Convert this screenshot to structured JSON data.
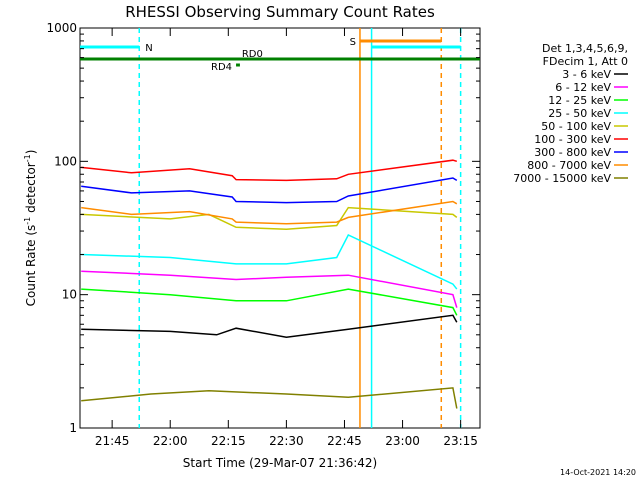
{
  "chart_data": {
    "type": "line",
    "title": "RHESSI Observing Summary Count Rates",
    "xlabel": "Start Time (29-Mar-07 21:36:42)",
    "ylabel_main": "Count Rate (s",
    "ylabel_sup1": "-1",
    "ylabel_mid": " detector",
    "ylabel_sup2": "-1",
    "ylabel_end": ")",
    "y_scale": "log",
    "ylim": [
      1,
      1000
    ],
    "xlim": [
      "21:36:42",
      "23:20:00"
    ],
    "x_ticks": [
      "21:45",
      "22:00",
      "22:15",
      "22:30",
      "22:45",
      "23:00",
      "23:15"
    ],
    "y_ticks": [
      "1",
      "10",
      "100",
      "1000"
    ],
    "legend_header": [
      "Det 1,3,4,5,6,9,",
      "FDecim 1, Att 0"
    ],
    "legend_position": "right",
    "series": [
      {
        "name": "3 - 6 keV",
        "color": "#000000",
        "points": [
          [
            "21:37",
            5.5
          ],
          [
            "22:00",
            5.3
          ],
          [
            "22:12",
            5.0
          ],
          [
            "22:17",
            5.6
          ],
          [
            "22:30",
            4.8
          ],
          [
            "22:46",
            5.5
          ],
          [
            "23:13",
            7.0
          ],
          [
            "23:14",
            6.2
          ]
        ]
      },
      {
        "name": "6 - 12 keV",
        "color": "#ff00ff",
        "points": [
          [
            "21:37",
            15
          ],
          [
            "22:00",
            14
          ],
          [
            "22:17",
            13
          ],
          [
            "22:30",
            13.5
          ],
          [
            "22:46",
            14
          ],
          [
            "23:13",
            10
          ],
          [
            "23:14",
            8
          ]
        ]
      },
      {
        "name": "12 - 25 keV",
        "color": "#00ff00",
        "points": [
          [
            "21:37",
            11
          ],
          [
            "22:00",
            10
          ],
          [
            "22:17",
            9
          ],
          [
            "22:30",
            9
          ],
          [
            "22:46",
            11
          ],
          [
            "23:13",
            8
          ],
          [
            "23:14",
            7
          ]
        ]
      },
      {
        "name": "25 - 50 keV",
        "color": "#00ffff",
        "points": [
          [
            "21:37",
            20
          ],
          [
            "22:00",
            19
          ],
          [
            "22:17",
            17
          ],
          [
            "22:30",
            17
          ],
          [
            "22:43",
            19
          ],
          [
            "22:46",
            28
          ],
          [
            "23:13",
            12
          ],
          [
            "23:14",
            11
          ]
        ]
      },
      {
        "name": "50 - 100 keV",
        "color": "#c8c800",
        "points": [
          [
            "21:37",
            40
          ],
          [
            "22:00",
            37
          ],
          [
            "22:10",
            40
          ],
          [
            "22:17",
            32
          ],
          [
            "22:30",
            31
          ],
          [
            "22:43",
            33
          ],
          [
            "22:46",
            45
          ],
          [
            "23:13",
            40
          ],
          [
            "23:14",
            38
          ]
        ]
      },
      {
        "name": "100 - 300 keV",
        "color": "#ff0000",
        "points": [
          [
            "21:37",
            90
          ],
          [
            "21:50",
            82
          ],
          [
            "22:05",
            88
          ],
          [
            "22:16",
            78
          ],
          [
            "22:17",
            73
          ],
          [
            "22:30",
            72
          ],
          [
            "22:43",
            74
          ],
          [
            "22:46",
            80
          ],
          [
            "23:13",
            102
          ],
          [
            "23:14",
            100
          ]
        ]
      },
      {
        "name": "300 - 800 keV",
        "color": "#0000ff",
        "points": [
          [
            "21:37",
            65
          ],
          [
            "21:50",
            58
          ],
          [
            "22:05",
            60
          ],
          [
            "22:16",
            54
          ],
          [
            "22:17",
            50
          ],
          [
            "22:30",
            49
          ],
          [
            "22:43",
            50
          ],
          [
            "22:46",
            55
          ],
          [
            "23:13",
            75
          ],
          [
            "23:14",
            72
          ]
        ]
      },
      {
        "name": "800 - 7000 keV",
        "color": "#ff8c00",
        "points": [
          [
            "21:37",
            45
          ],
          [
            "21:50",
            40
          ],
          [
            "22:05",
            42
          ],
          [
            "22:16",
            37
          ],
          [
            "22:17",
            35
          ],
          [
            "22:30",
            34
          ],
          [
            "22:43",
            35
          ],
          [
            "22:46",
            38
          ],
          [
            "23:13",
            50
          ],
          [
            "23:14",
            48
          ]
        ]
      },
      {
        "name": "7000 - 15000 keV",
        "color": "#808000",
        "points": [
          [
            "21:37",
            1.6
          ],
          [
            "21:55",
            1.8
          ],
          [
            "22:10",
            1.9
          ],
          [
            "22:30",
            1.8
          ],
          [
            "22:46",
            1.7
          ],
          [
            "23:13",
            2.0
          ],
          [
            "23:14",
            1.4
          ]
        ]
      }
    ],
    "flag_lines": [
      {
        "label": "N",
        "color": "#00ffff",
        "segments": [
          [
            "21:36:42",
            "21:52:00"
          ],
          [
            "22:52:00",
            "23:15:00"
          ]
        ]
      },
      {
        "label": "S",
        "color": "#ff8c00",
        "segments": [
          [
            "22:49:00",
            "23:10:00"
          ]
        ]
      },
      {
        "label": "RD0",
        "color": "#008000",
        "segments": [
          [
            "21:36:42",
            "23:20:00"
          ]
        ]
      },
      {
        "label": "RD4",
        "color": "#008000",
        "segments": [
          [
            "22:17:00",
            "22:18:00"
          ]
        ]
      }
    ],
    "vertical_lines": [
      {
        "time": "21:52:00",
        "color": "#00ffff",
        "style": "dashed"
      },
      {
        "time": "22:49:00",
        "color": "#ff8c00",
        "style": "solid"
      },
      {
        "time": "22:52:00",
        "color": "#00ffff",
        "style": "solid"
      },
      {
        "time": "23:10:00",
        "color": "#ff8c00",
        "style": "dashed"
      },
      {
        "time": "23:15:00",
        "color": "#00ffff",
        "style": "dashed"
      }
    ],
    "timestamp": "14-Oct-2021 14:20"
  }
}
